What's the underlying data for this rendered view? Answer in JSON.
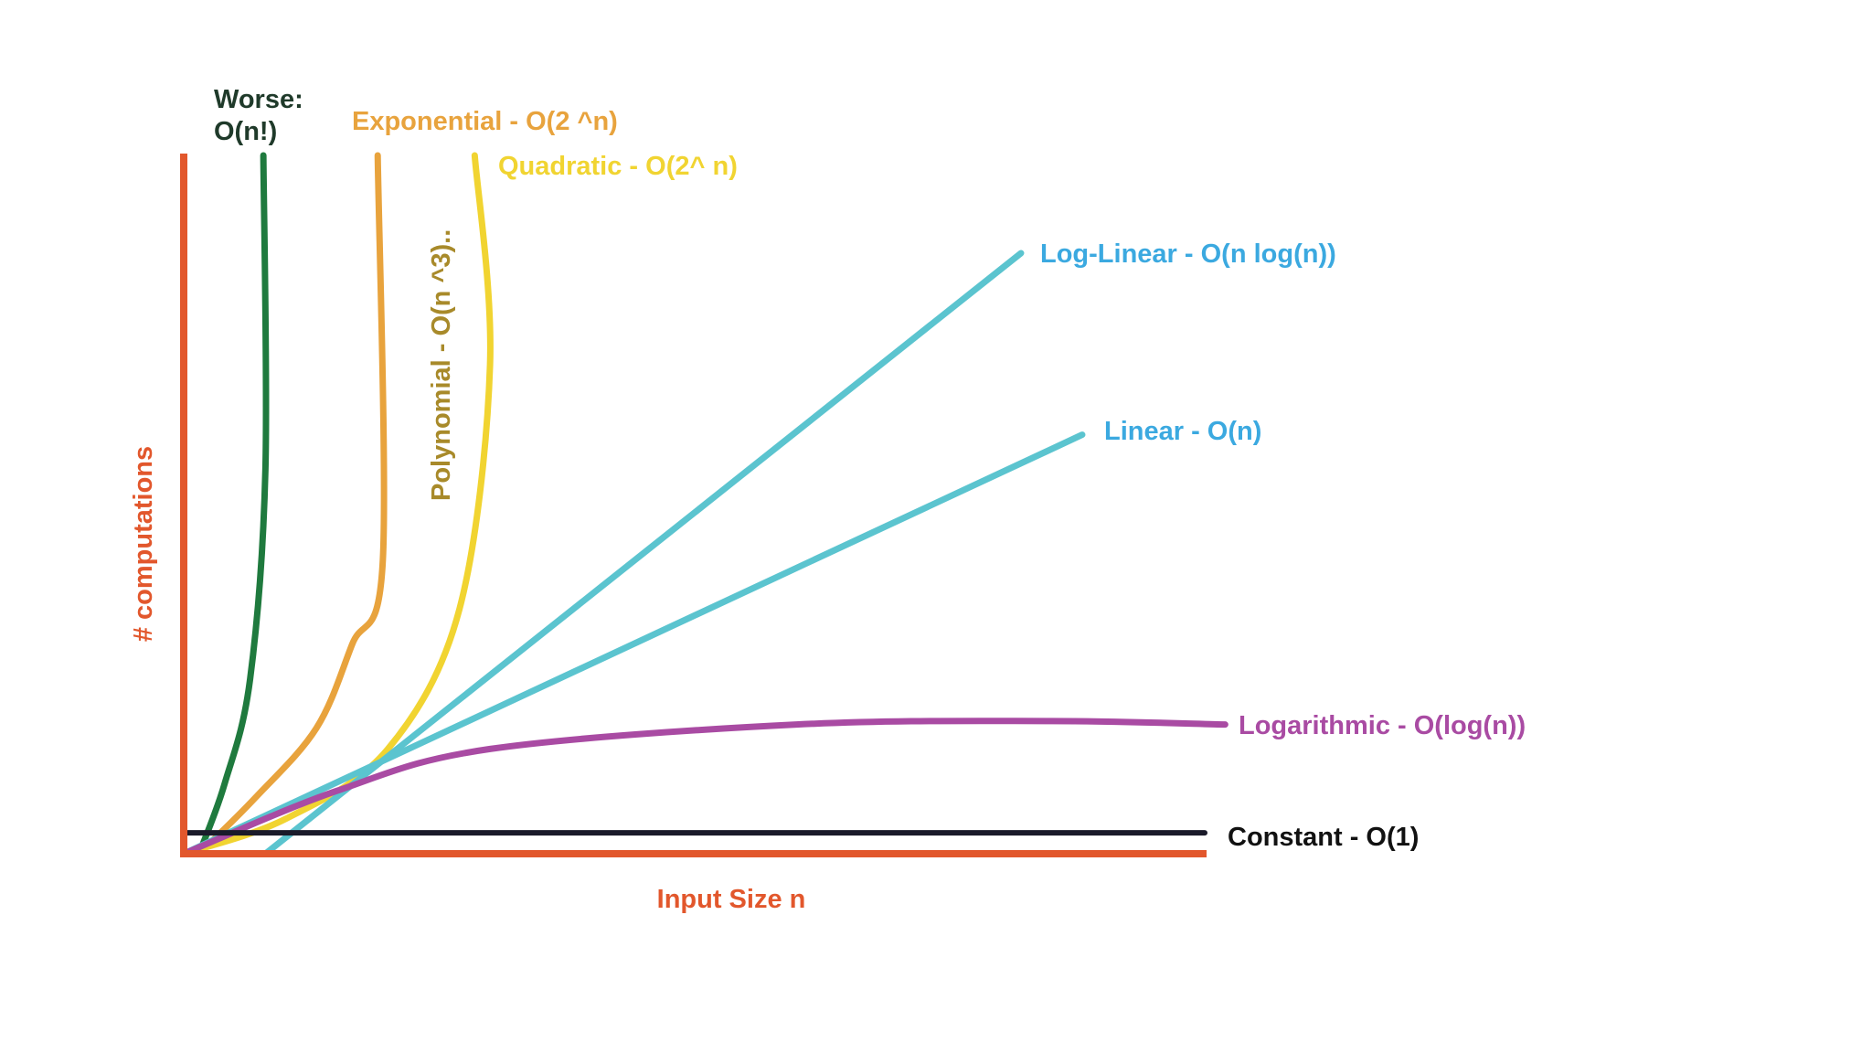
{
  "chart_data": {
    "type": "line",
    "title": "",
    "xlabel": "Input Size n",
    "ylabel": "# computations",
    "grid": false,
    "legend": "none",
    "axis_color": "#e2572c",
    "series": [
      {
        "key": "factorial",
        "line1": "Worse:",
        "line2": "O(n!)",
        "color": "#1f7a3e",
        "label_color": "#1f3a2a",
        "points": [
          [
            0.015,
            0.0
          ],
          [
            0.04,
            0.1
          ],
          [
            0.065,
            0.25
          ],
          [
            0.08,
            0.55
          ],
          [
            0.078,
            1.0
          ]
        ]
      },
      {
        "key": "exponential",
        "label": "Exponential - O(2 ^n)",
        "color": "#e8a33d",
        "label_color": "#e8a33d",
        "points": [
          [
            0.015,
            0.0
          ],
          [
            0.07,
            0.08
          ],
          [
            0.13,
            0.18
          ],
          [
            0.165,
            0.3
          ],
          [
            0.195,
            0.42
          ],
          [
            0.19,
            1.0
          ]
        ]
      },
      {
        "key": "quadratic",
        "label": "Quadratic - O(2^ n)",
        "color": "#f1d431",
        "label_color": "#f1d431",
        "points": [
          [
            0.0,
            0.0
          ],
          [
            0.1,
            0.05
          ],
          [
            0.2,
            0.15
          ],
          [
            0.27,
            0.35
          ],
          [
            0.3,
            0.7
          ],
          [
            0.285,
            1.0
          ]
        ]
      },
      {
        "key": "polynomial",
        "label": "Polynomial  - O(n ^3)..",
        "color": "#a88a2a",
        "label_color": "#a88a2a"
      },
      {
        "key": "loglinear",
        "label": "Log-Linear - O(n log(n))",
        "color": "#5bc4cf",
        "label_color": "#3ba9e0",
        "points": [
          [
            0.08,
            0.0
          ],
          [
            0.82,
            0.86
          ]
        ]
      },
      {
        "key": "linear",
        "label": "Linear - O(n)",
        "color": "#5bc4cf",
        "label_color": "#3ba9e0",
        "points": [
          [
            0.0,
            0.0
          ],
          [
            0.88,
            0.6
          ]
        ]
      },
      {
        "key": "logarithmic",
        "label": "Logarithmic - O(log(n))",
        "color": "#a94ba3",
        "label_color": "#a94ba3",
        "points": [
          [
            0.0,
            0.0
          ],
          [
            0.15,
            0.09
          ],
          [
            0.3,
            0.15
          ],
          [
            0.6,
            0.185
          ],
          [
            0.85,
            0.19
          ],
          [
            1.02,
            0.185
          ]
        ]
      },
      {
        "key": "constant",
        "label": "Constant - O(1)",
        "color": "#1a1a2a",
        "label_color": "#111111",
        "points": [
          [
            0.0,
            0.03
          ],
          [
            1.0,
            0.03
          ]
        ]
      }
    ]
  }
}
